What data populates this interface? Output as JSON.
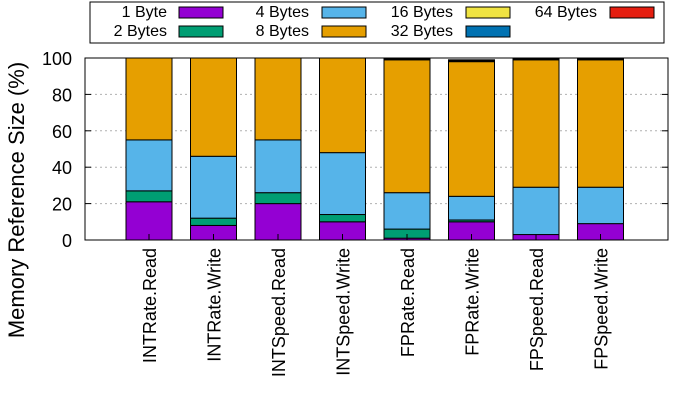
{
  "chart_data": {
    "type": "bar",
    "stacked": true,
    "title": "",
    "xlabel": "",
    "ylabel": "Memory Reference Size (%)",
    "ylim": [
      0,
      100
    ],
    "yticks": [
      0,
      20,
      40,
      60,
      80,
      100
    ],
    "grid": true,
    "legend_position": "top",
    "categories": [
      "INTRate.Read",
      "INTRate.Write",
      "INTSpeed.Read",
      "INTSpeed.Write",
      "FPRate.Read",
      "FPRate.Write",
      "FPSpeed.Read",
      "FPSpeed.Write"
    ],
    "series": [
      {
        "name": "1 Byte",
        "color": "#9400d3",
        "values": [
          21,
          8,
          20,
          10,
          1,
          10,
          3,
          9
        ]
      },
      {
        "name": "2 Bytes",
        "color": "#009e73",
        "values": [
          6,
          4,
          6,
          4,
          5,
          1,
          0,
          0
        ]
      },
      {
        "name": "4 Bytes",
        "color": "#56b4e9",
        "values": [
          28,
          34,
          29,
          34,
          20,
          13,
          26,
          20
        ]
      },
      {
        "name": "8 Bytes",
        "color": "#e69f00",
        "values": [
          45,
          54,
          45,
          52,
          73,
          74,
          70,
          70
        ]
      },
      {
        "name": "16 Bytes",
        "color": "#f0e442",
        "values": [
          0,
          0,
          0,
          0,
          0.4,
          0.5,
          0.4,
          0.4
        ]
      },
      {
        "name": "32 Bytes",
        "color": "#0072b2",
        "values": [
          0,
          0,
          0,
          0,
          0.2,
          0.3,
          0.2,
          0.2
        ]
      },
      {
        "name": "64 Bytes",
        "color": "#e51e10",
        "values": [
          0,
          0,
          0,
          0,
          0.4,
          0.2,
          0.4,
          0.4
        ]
      }
    ]
  }
}
